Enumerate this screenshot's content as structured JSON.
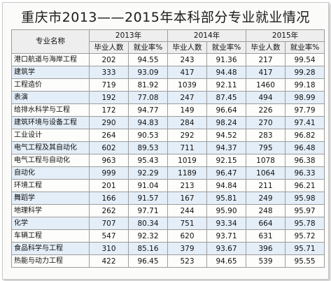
{
  "title": "重庆市2013——2015年本科部分专业就业情况",
  "header": {
    "major_label": "专业名称",
    "years": [
      "2013年",
      "2014年",
      "2015年"
    ],
    "sub_labels": [
      "毕业人数",
      "就业率%"
    ]
  },
  "rows": [
    {
      "major": "港口航道与海岸工程",
      "v": [
        "202",
        "94.55",
        "243",
        "91.36",
        "217",
        "99.54"
      ]
    },
    {
      "major": "建筑学",
      "v": [
        "333",
        "93.09",
        "417",
        "94.48",
        "417",
        "99.28"
      ]
    },
    {
      "major": "工程造价",
      "v": [
        "719",
        "81.92",
        "1039",
        "92.11",
        "1460",
        "99.18"
      ]
    },
    {
      "major": "表演",
      "v": [
        "192",
        "77.08",
        "247",
        "87.45",
        "494",
        "98.99"
      ]
    },
    {
      "major": "给排水科学与工程",
      "v": [
        "172",
        "94.77",
        "149",
        "96.64",
        "226",
        "97.79"
      ]
    },
    {
      "major": "建筑环境与设备工程",
      "v": [
        "290",
        "94.83",
        "284",
        "98.24",
        "270",
        "97.41"
      ]
    },
    {
      "major": "工业设计",
      "v": [
        "264",
        "90.53",
        "292",
        "94.52",
        "283",
        "96.82"
      ]
    },
    {
      "major": "电气工程及其自动化",
      "v": [
        "602",
        "89.53",
        "711",
        "94.37",
        "795",
        "96.48"
      ]
    },
    {
      "major": "电气工程与自动化",
      "v": [
        "963",
        "95.43",
        "1019",
        "92.15",
        "1078",
        "96.38"
      ]
    },
    {
      "major": "自动化",
      "v": [
        "999",
        "92.29",
        "1189",
        "96.47",
        "1064",
        "96.33"
      ]
    },
    {
      "major": "环境工程",
      "v": [
        "201",
        "91.04",
        "213",
        "94.84",
        "211",
        "96.21"
      ]
    },
    {
      "major": "舞蹈学",
      "v": [
        "166",
        "91.57",
        "167",
        "95.81",
        "249",
        "95.98"
      ]
    },
    {
      "major": "地理科学",
      "v": [
        "262",
        "97.71",
        "244",
        "95.90",
        "248",
        "95.97"
      ]
    },
    {
      "major": "化学",
      "v": [
        "707",
        "80.34",
        "751",
        "93.34",
        "664",
        "95.78"
      ]
    },
    {
      "major": "车辆工程",
      "v": [
        "547",
        "92.32",
        "620",
        "93.71",
        "631",
        "95.72"
      ]
    },
    {
      "major": "食品科学与工程",
      "v": [
        "310",
        "85.16",
        "379",
        "93.67",
        "396",
        "95.71"
      ]
    },
    {
      "major": "热能与动力工程",
      "v": [
        "422",
        "96.45",
        "523",
        "94.65",
        "539",
        "95.55"
      ]
    }
  ]
}
